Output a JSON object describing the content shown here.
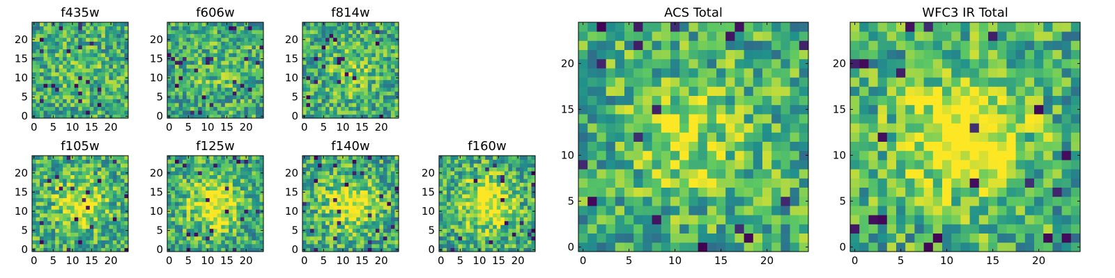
{
  "chart_data": [
    {
      "type": "heatmap",
      "title": "f435w",
      "seed": 11,
      "blob": 0.1,
      "xticks": [
        "0",
        "5",
        "10",
        "15",
        "20"
      ],
      "yticks": [
        "0",
        "5",
        "10",
        "15",
        "20"
      ]
    },
    {
      "type": "heatmap",
      "title": "f606w",
      "seed": 23,
      "blob": 0.1,
      "xticks": [
        "0",
        "5",
        "10",
        "15",
        "20"
      ],
      "yticks": [
        "0",
        "5",
        "10",
        "15",
        "20"
      ]
    },
    {
      "type": "heatmap",
      "title": "f814w",
      "seed": 37,
      "blob": 0.15,
      "xticks": [
        "0",
        "5",
        "10",
        "15",
        "20"
      ],
      "yticks": [
        "0",
        "5",
        "10",
        "15",
        "20"
      ]
    },
    {
      "type": "heatmap",
      "title": "f105w",
      "seed": 41,
      "blob": 0.35,
      "xticks": [
        "0",
        "5",
        "10",
        "15",
        "20"
      ],
      "yticks": [
        "0",
        "5",
        "10",
        "15",
        "20"
      ]
    },
    {
      "type": "heatmap",
      "title": "f125w",
      "seed": 53,
      "blob": 0.45,
      "xticks": [
        "0",
        "5",
        "10",
        "15",
        "20"
      ],
      "yticks": [
        "0",
        "5",
        "10",
        "15",
        "20"
      ]
    },
    {
      "type": "heatmap",
      "title": "f140w",
      "seed": 67,
      "blob": 0.4,
      "xticks": [
        "0",
        "5",
        "10",
        "15",
        "20"
      ],
      "yticks": [
        "0",
        "5",
        "10",
        "15",
        "20"
      ]
    },
    {
      "type": "heatmap",
      "title": "f160w",
      "seed": 79,
      "blob": 0.45,
      "xticks": [
        "0",
        "5",
        "10",
        "15",
        "20"
      ],
      "yticks": [
        "0",
        "5",
        "10",
        "15",
        "20"
      ]
    },
    {
      "type": "heatmap",
      "title": "ACS Total",
      "seed": 97,
      "blob": 0.25,
      "xticks": [
        "0",
        "5",
        "10",
        "15",
        "20"
      ],
      "yticks": [
        "0",
        "5",
        "10",
        "15",
        "20"
      ]
    },
    {
      "type": "heatmap",
      "title": "WFC3 IR Total",
      "seed": 113,
      "blob": 0.55,
      "xticks": [
        "0",
        "5",
        "10",
        "15",
        "20"
      ],
      "yticks": [
        "0",
        "5",
        "10",
        "15",
        "20"
      ]
    }
  ],
  "grid_size": 25,
  "colormap": [
    "#440154",
    "#3b528b",
    "#21918c",
    "#5ec962",
    "#fde725"
  ]
}
